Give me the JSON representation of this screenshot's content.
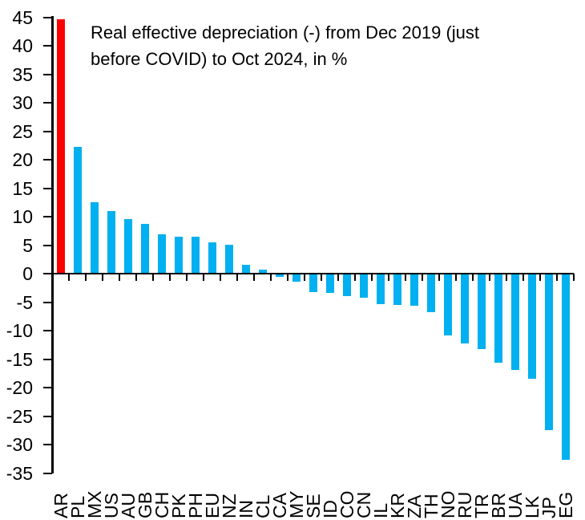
{
  "chart_data": {
    "type": "bar",
    "title_lines": [
      "Real effective depreciation (-) from Dec 2019 (just",
      "before COVID) to Oct 2024, in %"
    ],
    "categories": [
      "AR",
      "PL",
      "MX",
      "US",
      "AU",
      "GB",
      "CH",
      "PK",
      "PH",
      "EU",
      "NZ",
      "IN",
      "CL",
      "CA",
      "MY",
      "SE",
      "ID",
      "CO",
      "CN",
      "IL",
      "KR",
      "ZA",
      "TH",
      "NO",
      "RU",
      "TR",
      "BR",
      "UA",
      "LK",
      "JP",
      "EG"
    ],
    "values": [
      44.6,
      22.3,
      12.5,
      11.0,
      9.6,
      8.8,
      6.9,
      6.5,
      6.5,
      5.5,
      5.1,
      1.5,
      0.7,
      -0.5,
      -1.4,
      -3.3,
      -3.4,
      -3.9,
      -4.2,
      -5.4,
      -5.5,
      -5.7,
      -6.8,
      -10.8,
      -12.2,
      -13.2,
      -15.6,
      -16.9,
      -18.5,
      -27.4,
      -32.7
    ],
    "bar_colors": {
      "default": "#00B0F0",
      "highlight": "#FF0000",
      "highlight_category": "AR"
    },
    "axis_color": "#000000",
    "background_color": "#FFFFFF",
    "y_axis": {
      "min": -35,
      "max": 45,
      "tick_step": 5,
      "ticks": [
        45,
        40,
        35,
        30,
        25,
        20,
        15,
        10,
        5,
        0,
        -5,
        -10,
        -15,
        -20,
        -25,
        -30,
        -35
      ]
    },
    "x_axis": {
      "label_rotation_degrees": -90
    },
    "grid": false,
    "legend": false
  }
}
